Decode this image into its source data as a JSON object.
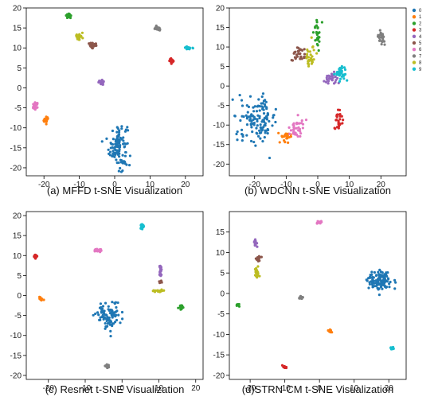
{
  "legend": {
    "labels": [
      "0",
      "1",
      "2",
      "3",
      "4",
      "5",
      "6",
      "7",
      "8",
      "9"
    ],
    "colors": [
      "#1f77b4",
      "#ff7f0e",
      "#2ca02c",
      "#d62728",
      "#9467bd",
      "#8c564b",
      "#e377c2",
      "#7f7f7f",
      "#bcbd22",
      "#17becf"
    ]
  },
  "chart_data": [
    {
      "type": "scatter",
      "title": "(a) MFFD t-SNE Visualization",
      "xlim": [
        -25,
        25
      ],
      "ylim": [
        -22,
        20
      ],
      "xticks": [
        -20,
        -10,
        0,
        10,
        20
      ],
      "yticks": [
        -20,
        -15,
        -10,
        -5,
        0,
        5,
        10,
        15,
        20
      ],
      "legend": false,
      "clusters": [
        {
          "label": "0",
          "x": 1.0,
          "y": -14.5,
          "sx": 1.3,
          "sy": 3.0,
          "n": 110
        },
        {
          "label": "1",
          "x": -19.5,
          "y": -8.0,
          "sx": 0.35,
          "sy": 0.35,
          "n": 22
        },
        {
          "label": "2",
          "x": -13.0,
          "y": 18.0,
          "sx": 0.35,
          "sy": 0.25,
          "n": 20
        },
        {
          "label": "3",
          "x": 16.0,
          "y": 6.8,
          "sx": 0.3,
          "sy": 0.3,
          "n": 20
        },
        {
          "label": "4",
          "x": -3.5,
          "y": 1.4,
          "sx": 0.5,
          "sy": 0.25,
          "n": 18
        },
        {
          "label": "5",
          "x": -6.0,
          "y": 10.5,
          "sx": 0.7,
          "sy": 0.4,
          "n": 25
        },
        {
          "label": "6",
          "x": -22.5,
          "y": -4.5,
          "sx": 0.5,
          "sy": 0.4,
          "n": 22
        },
        {
          "label": "7",
          "x": 12.0,
          "y": 14.8,
          "sx": 0.4,
          "sy": 0.25,
          "n": 20
        },
        {
          "label": "8",
          "x": -10.0,
          "y": 12.8,
          "sx": 0.5,
          "sy": 0.45,
          "n": 25
        },
        {
          "label": "9",
          "x": 21.0,
          "y": 10.0,
          "sx": 0.5,
          "sy": 0.2,
          "n": 20
        }
      ]
    },
    {
      "type": "scatter",
      "title": "(b) WDCNN t-SNE Visualization",
      "xlim": [
        -28,
        28
      ],
      "ylim": [
        -23,
        20
      ],
      "xticks": [
        -20,
        -10,
        0,
        10,
        20
      ],
      "yticks": [
        -20,
        -15,
        -10,
        -5,
        0,
        5,
        10,
        15,
        20
      ],
      "legend": true,
      "legend_position": "top-right",
      "clusters": [
        {
          "label": "0",
          "x": -19.0,
          "y": -8.5,
          "sx": 3.0,
          "sy": 2.8,
          "n": 130
        },
        {
          "label": "1",
          "x": -10.0,
          "y": -13.0,
          "sx": 1.2,
          "sy": 0.8,
          "n": 25
        },
        {
          "label": "2",
          "x": 0.0,
          "y": 13.5,
          "sx": 0.45,
          "sy": 1.7,
          "n": 28
        },
        {
          "label": "3",
          "x": 6.5,
          "y": -8.5,
          "sx": 0.6,
          "sy": 1.5,
          "n": 28
        },
        {
          "label": "4",
          "x": 4.0,
          "y": 2.0,
          "sx": 1.5,
          "sy": 0.9,
          "n": 28
        },
        {
          "label": "5",
          "x": -6.5,
          "y": 7.8,
          "sx": 1.2,
          "sy": 1.0,
          "n": 30
        },
        {
          "label": "6",
          "x": -6.5,
          "y": -11.0,
          "sx": 1.3,
          "sy": 1.5,
          "n": 35
        },
        {
          "label": "7",
          "x": 20.0,
          "y": 12.5,
          "sx": 0.6,
          "sy": 0.9,
          "n": 25
        },
        {
          "label": "8",
          "x": -2.5,
          "y": 7.5,
          "sx": 0.9,
          "sy": 1.5,
          "n": 32
        },
        {
          "label": "9",
          "x": 7.5,
          "y": 3.0,
          "sx": 0.9,
          "sy": 1.0,
          "n": 30
        }
      ]
    },
    {
      "type": "scatter",
      "title": "(c) Resnet t-SNE Visualization",
      "xlim": [
        -26,
        22
      ],
      "ylim": [
        -21,
        21
      ],
      "xticks": [
        -20,
        -10,
        0,
        10,
        20
      ],
      "yticks": [
        -20,
        -15,
        -10,
        -5,
        0,
        5,
        10,
        15,
        20
      ],
      "legend": false,
      "clusters": [
        {
          "label": "0",
          "x": -3.5,
          "y": -5.0,
          "sx": 1.6,
          "sy": 1.6,
          "n": 100
        },
        {
          "label": "1",
          "x": -22.0,
          "y": -0.8,
          "sx": 0.3,
          "sy": 0.3,
          "n": 15
        },
        {
          "label": "2",
          "x": 16.0,
          "y": -3.0,
          "sx": 0.35,
          "sy": 0.25,
          "n": 15
        },
        {
          "label": "3",
          "x": -23.5,
          "y": 9.8,
          "sx": 0.3,
          "sy": 0.25,
          "n": 15
        },
        {
          "label": "4",
          "x": 10.5,
          "y": 5.8,
          "sx": 0.25,
          "sy": 0.9,
          "n": 18
        },
        {
          "label": "5",
          "x": 10.5,
          "y": 3.5,
          "sx": 0.2,
          "sy": 0.2,
          "n": 6
        },
        {
          "label": "6",
          "x": -6.5,
          "y": 11.3,
          "sx": 0.6,
          "sy": 0.2,
          "n": 18
        },
        {
          "label": "7",
          "x": -4.0,
          "y": -17.7,
          "sx": 0.35,
          "sy": 0.25,
          "n": 15
        },
        {
          "label": "8",
          "x": 10.0,
          "y": 1.2,
          "sx": 0.7,
          "sy": 0.2,
          "n": 18
        },
        {
          "label": "9",
          "x": 5.5,
          "y": 17.3,
          "sx": 0.3,
          "sy": 0.35,
          "n": 15
        }
      ]
    },
    {
      "type": "scatter",
      "title": "(d)STRN-CM t-SNE Visualization",
      "xlim": [
        -26,
        25
      ],
      "ylim": [
        -21,
        20
      ],
      "xticks": [
        -20,
        -10,
        0,
        10,
        20
      ],
      "yticks": [
        -20,
        -15,
        -10,
        -5,
        0,
        5,
        10,
        15
      ],
      "legend": false,
      "clusters": [
        {
          "label": "0",
          "x": 17.5,
          "y": 3.0,
          "sx": 1.8,
          "sy": 1.3,
          "n": 110
        },
        {
          "label": "1",
          "x": 3.0,
          "y": -9.2,
          "sx": 0.25,
          "sy": 0.2,
          "n": 12
        },
        {
          "label": "2",
          "x": -23.5,
          "y": -2.7,
          "sx": 0.25,
          "sy": 0.2,
          "n": 12
        },
        {
          "label": "3",
          "x": -10.0,
          "y": -18.0,
          "sx": 0.25,
          "sy": 0.2,
          "n": 12
        },
        {
          "label": "4",
          "x": -18.5,
          "y": 12.5,
          "sx": 0.25,
          "sy": 0.5,
          "n": 15
        },
        {
          "label": "5",
          "x": -17.5,
          "y": 8.5,
          "sx": 0.35,
          "sy": 0.4,
          "n": 18
        },
        {
          "label": "6",
          "x": 0.0,
          "y": 17.5,
          "sx": 0.4,
          "sy": 0.2,
          "n": 15
        },
        {
          "label": "7",
          "x": -5.5,
          "y": -1.0,
          "sx": 0.35,
          "sy": 0.2,
          "n": 12
        },
        {
          "label": "8",
          "x": -18.0,
          "y": 5.0,
          "sx": 0.45,
          "sy": 0.6,
          "n": 20
        },
        {
          "label": "9",
          "x": 21.0,
          "y": -13.3,
          "sx": 0.3,
          "sy": 0.2,
          "n": 12
        }
      ]
    }
  ]
}
